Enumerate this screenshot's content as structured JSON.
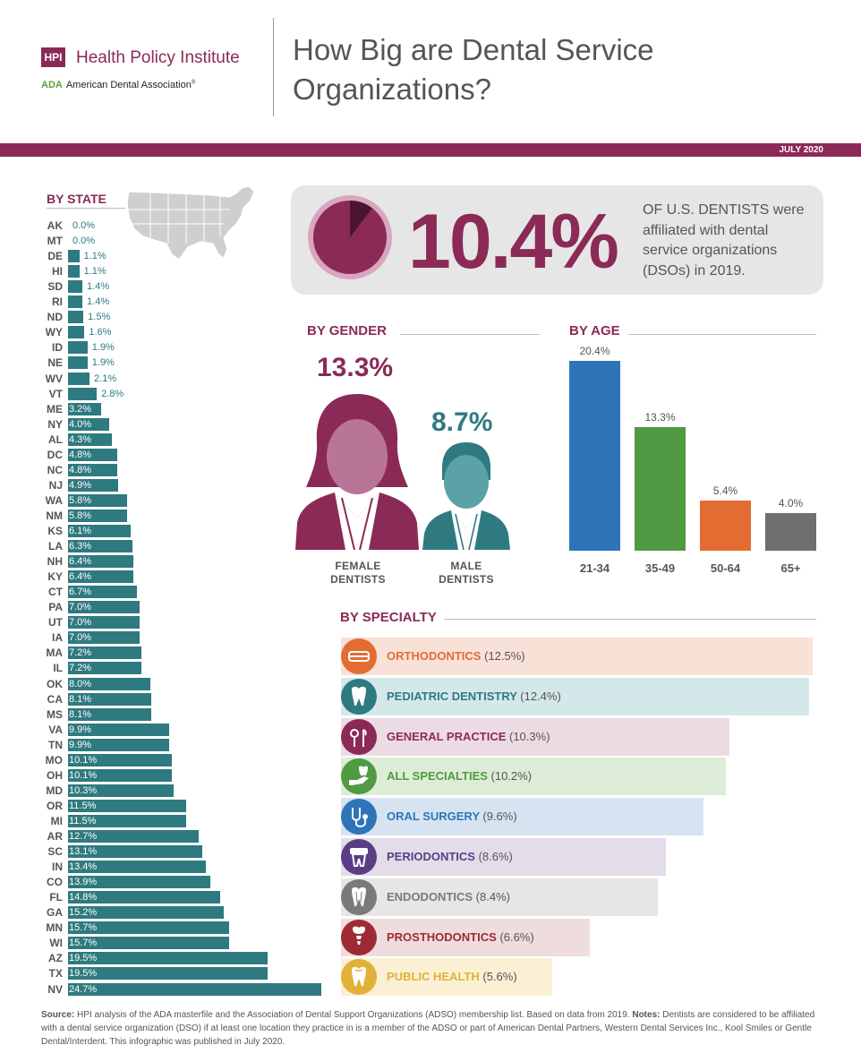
{
  "header": {
    "hpi_logo": "HPI",
    "institute": "Health Policy Institute",
    "ada_logo": "ADA",
    "ada_name": "American Dental Association",
    "ada_reg": "®",
    "title": "How Big are Dental Service Organizations?",
    "date": "JULY 2020"
  },
  "headline": {
    "value": "10.4%",
    "text": "OF U.S. DENTISTS were affiliated with dental service organizations (DSOs) in 2019."
  },
  "gender": {
    "title": "BY GENDER",
    "female_value": "13.3%",
    "male_value": "8.7%",
    "female_label_1": "FEMALE",
    "female_label_2": "DENTISTS",
    "male_label_1": "MALE",
    "male_label_2": "DENTISTS"
  },
  "chart_data": [
    {
      "type": "bar",
      "title": "BY STATE",
      "orientation": "horizontal",
      "categories": [
        "AK",
        "MT",
        "DE",
        "HI",
        "SD",
        "RI",
        "ND",
        "WY",
        "ID",
        "NE",
        "WV",
        "VT",
        "ME",
        "NY",
        "AL",
        "DC",
        "NC",
        "NJ",
        "WA",
        "NM",
        "KS",
        "LA",
        "NH",
        "KY",
        "CT",
        "PA",
        "UT",
        "IA",
        "MA",
        "IL",
        "OK",
        "CA",
        "MS",
        "VA",
        "TN",
        "MO",
        "OH",
        "MD",
        "OR",
        "MI",
        "AR",
        "SC",
        "IN",
        "CO",
        "FL",
        "GA",
        "MN",
        "WI",
        "AZ",
        "TX",
        "NV"
      ],
      "values": [
        0.0,
        0.0,
        1.1,
        1.1,
        1.4,
        1.4,
        1.5,
        1.6,
        1.9,
        1.9,
        2.1,
        2.8,
        3.2,
        4.0,
        4.3,
        4.8,
        4.8,
        4.9,
        5.8,
        5.8,
        6.1,
        6.3,
        6.4,
        6.4,
        6.7,
        7.0,
        7.0,
        7.0,
        7.2,
        7.2,
        8.0,
        8.1,
        8.1,
        9.9,
        9.9,
        10.1,
        10.1,
        10.3,
        11.5,
        11.5,
        12.7,
        13.1,
        13.4,
        13.9,
        14.8,
        15.2,
        15.7,
        15.7,
        19.5,
        19.5,
        24.7
      ],
      "labels": [
        "0.0%",
        "0.0%",
        "1.1%",
        "1.1%",
        "1.4%",
        "1.4%",
        "1.5%",
        "1.6%",
        "1.9%",
        "1.9%",
        "2.1%",
        "2.8%",
        "3.2%",
        "4.0%",
        "4.3%",
        "4.8%",
        "4.8%",
        "4.9%",
        "5.8%",
        "5.8%",
        "6.1%",
        "6.3%",
        "6.4%",
        "6.4%",
        "6.7%",
        "7.0%",
        "7.0%",
        "7.0%",
        "7.2%",
        "7.2%",
        "8.0%",
        "8.1%",
        "8.1%",
        "9.9%",
        "9.9%",
        "10.1%",
        "10.1%",
        "10.3%",
        "11.5%",
        "11.5%",
        "12.7%",
        "13.1%",
        "13.4%",
        "13.9%",
        "14.8%",
        "15.2%",
        "15.7%",
        "15.7%",
        "19.5%",
        "19.5%",
        "24.7%"
      ],
      "color": "#2e7a80"
    },
    {
      "type": "bar",
      "title": "BY AGE",
      "categories": [
        "21-34",
        "35-49",
        "50-64",
        "65+"
      ],
      "values": [
        20.4,
        13.3,
        5.4,
        4.0
      ],
      "labels": [
        "20.4%",
        "13.3%",
        "5.4%",
        "4.0%"
      ],
      "colors": [
        "#2f74b9",
        "#4f9a42",
        "#e36c33",
        "#6f6f6f"
      ]
    },
    {
      "type": "bar",
      "title": "BY SPECIALTY",
      "orientation": "horizontal",
      "categories": [
        "ORTHODONTICS",
        "PEDIATRIC DENTISTRY",
        "GENERAL PRACTICE",
        "ALL SPECIALTIES",
        "ORAL SURGERY",
        "PERIODONTICS",
        "ENDODONTICS",
        "PROSTHODONTICS",
        "PUBLIC HEALTH"
      ],
      "values": [
        12.5,
        12.4,
        10.3,
        10.2,
        9.6,
        8.6,
        8.4,
        6.6,
        5.6
      ],
      "labels": [
        "(12.5%)",
        "(12.4%)",
        "(10.3%)",
        "(10.2%)",
        "(9.6%)",
        "(8.6%)",
        "(8.4%)",
        "(6.6%)",
        "(5.6%)"
      ],
      "colors": [
        "#e36c33",
        "#2e7a80",
        "#8b2a57",
        "#4f9a42",
        "#2f74b9",
        "#5b3d86",
        "#7a7a7a",
        "#9e2a35",
        "#e0b23a"
      ],
      "bar_colors": [
        "#f8e1d7",
        "#d5e8e9",
        "#eddbe4",
        "#ddecd6",
        "#d6e4f1",
        "#e2dde9",
        "#e6e6e6",
        "#efdcdc",
        "#fbf0d4"
      ],
      "icons": [
        "braces-icon",
        "tooth-icon",
        "dental-tools-icon",
        "hand-tooth-icon",
        "stethoscope-icon",
        "gum-tooth-icon",
        "root-canal-icon",
        "implant-icon",
        "tooth-outline-icon"
      ]
    }
  ],
  "source": {
    "label": "Source:",
    "text": "HPI analysis of the ADA masterfile and the Association of Dental Support Organizations (ADSO) membership list. Based on data from 2019.",
    "notes_label": "Notes:",
    "notes": "Dentists are considered to be affiliated with a dental service organization (DSO) if at least one location they practice in is a member of the ADSO or part of American Dental Partners, Western Dental Services Inc., Kool Smiles or Gentle Dental/Interdent. This infographic was published in July 2020."
  }
}
